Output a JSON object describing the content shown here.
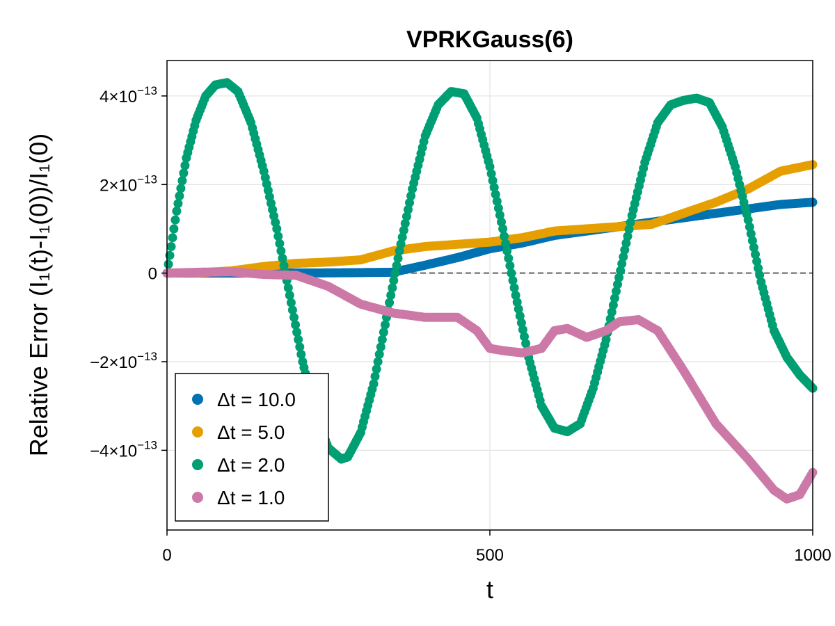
{
  "chart_data": {
    "type": "scatter",
    "title": "VPRKGauss(6)",
    "xlabel": "t",
    "ylabel": "Relative Error (I₁(t)-I₁(0))/I₁(0)",
    "xlim": [
      0,
      1000
    ],
    "ylim": [
      -5.8e-13,
      4.8e-13
    ],
    "xticks": [
      {
        "value": 0,
        "label": "0"
      },
      {
        "value": 500,
        "label": "500"
      },
      {
        "value": 1000,
        "label": "1000"
      }
    ],
    "yticks": [
      {
        "value": 4e-13,
        "base": "4×10",
        "exp": "−13"
      },
      {
        "value": 2e-13,
        "base": "2×10",
        "exp": "−13"
      },
      {
        "value": 0,
        "base": "0",
        "exp": ""
      },
      {
        "value": -2e-13,
        "base": "−2×10",
        "exp": "−13"
      },
      {
        "value": -4e-13,
        "base": "−4×10",
        "exp": "−13"
      }
    ],
    "grid": true,
    "reference_line": {
      "y": 0,
      "style": "dashed",
      "color": "#808080"
    },
    "legend_position": "bottom-left",
    "series": [
      {
        "name": "Δt = 10.0",
        "color": "#0072B2",
        "x": [
          0,
          50,
          100,
          150,
          200,
          250,
          300,
          350,
          400,
          450,
          500,
          550,
          600,
          650,
          700,
          750,
          800,
          850,
          900,
          950,
          1000
        ],
        "y": [
          0,
          2e-16,
          1e-16,
          3e-16,
          4e-16,
          5e-16,
          1.2e-15,
          2e-15,
          1.8e-14,
          3.5e-14,
          5.5e-14,
          6.8e-14,
          8.5e-14,
          9.5e-14,
          1.05e-13,
          1.15e-13,
          1.25e-13,
          1.35e-13,
          1.45e-13,
          1.55e-13,
          1.6e-13
        ]
      },
      {
        "name": "Δt = 5.0",
        "color": "#E69F00",
        "x": [
          0,
          50,
          100,
          150,
          200,
          250,
          300,
          350,
          400,
          450,
          500,
          550,
          600,
          650,
          700,
          750,
          800,
          850,
          900,
          950,
          1000
        ],
        "y": [
          0,
          1e-15,
          5e-15,
          1.5e-14,
          2.2e-14,
          2.5e-14,
          3e-14,
          5e-14,
          6e-14,
          6.5e-14,
          7e-14,
          8e-14,
          9.5e-14,
          1e-13,
          1.05e-13,
          1.1e-13,
          1.35e-13,
          1.6e-13,
          1.9e-13,
          2.3e-13,
          2.45e-13
        ]
      },
      {
        "name": "Δt = 2.0",
        "color": "#009E73",
        "x": [
          0,
          15,
          30,
          45,
          60,
          75,
          93,
          110,
          130,
          150,
          170,
          190,
          210,
          230,
          250,
          270,
          280,
          300,
          320,
          340,
          360,
          380,
          400,
          420,
          440,
          460,
          480,
          500,
          520,
          540,
          560,
          580,
          600,
          620,
          640,
          660,
          680,
          700,
          720,
          740,
          760,
          780,
          800,
          820,
          840,
          860,
          880,
          900,
          920,
          940,
          960,
          980,
          1000
        ],
        "y": [
          0,
          1.4e-13,
          2.6e-13,
          3.45e-13,
          4e-13,
          4.25e-13,
          4.3e-13,
          4.1e-13,
          3.4e-13,
          2.3e-13,
          1e-13,
          -5e-14,
          -2e-13,
          -3.2e-13,
          -3.95e-13,
          -4.2e-13,
          -4.15e-13,
          -3.6e-13,
          -2.5e-13,
          -1e-13,
          5e-14,
          1.9e-13,
          3.1e-13,
          3.8e-13,
          4.1e-13,
          4.05e-13,
          3.5e-13,
          2.4e-13,
          1e-13,
          -5e-14,
          -1.9e-13,
          -3e-13,
          -3.5e-13,
          -3.58e-13,
          -3.4e-13,
          -2.6e-13,
          -1.5e-13,
          -1e-14,
          1.3e-13,
          2.5e-13,
          3.4e-13,
          3.8e-13,
          3.9e-13,
          3.95e-13,
          3.85e-13,
          3.3e-13,
          2.4e-13,
          1.2e-13,
          -2e-14,
          -1.3e-13,
          -1.9e-13,
          -2.3e-13,
          -2.6e-13
        ]
      },
      {
        "name": "Δt = 1.0",
        "color": "#CC79A7",
        "x": [
          0,
          50,
          100,
          150,
          200,
          250,
          300,
          350,
          400,
          450,
          480,
          500,
          520,
          550,
          580,
          600,
          620,
          650,
          680,
          700,
          730,
          760,
          800,
          850,
          900,
          940,
          960,
          980,
          1000
        ],
        "y": [
          0,
          2e-15,
          3e-15,
          -3e-15,
          -5e-15,
          -3e-14,
          -7e-14,
          -9e-14,
          -1e-13,
          -1e-13,
          -1.3e-13,
          -1.7e-13,
          -1.75e-13,
          -1.8e-13,
          -1.7e-13,
          -1.3e-13,
          -1.25e-13,
          -1.45e-13,
          -1.3e-13,
          -1.1e-13,
          -1.05e-13,
          -1.3e-13,
          -2.2e-13,
          -3.4e-13,
          -4.2e-13,
          -4.9e-13,
          -5.1e-13,
          -5e-13,
          -4.5e-13
        ]
      }
    ]
  }
}
